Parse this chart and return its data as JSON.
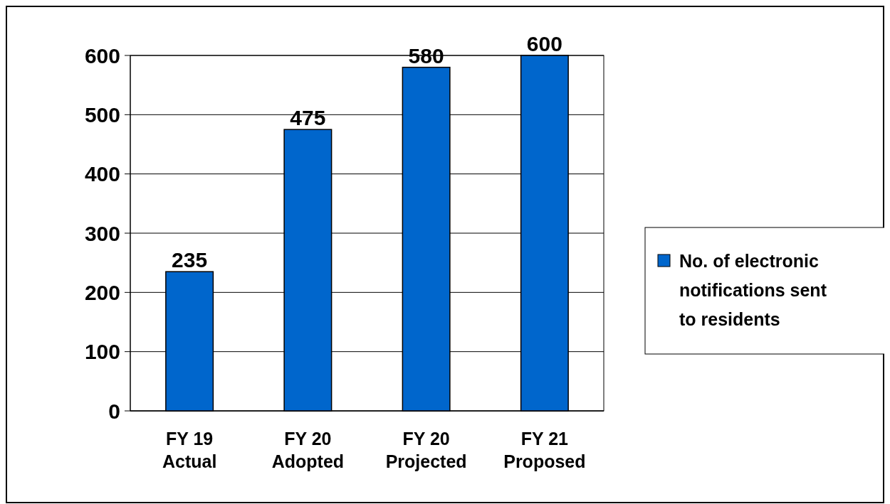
{
  "chart_data": {
    "type": "bar",
    "categories": [
      "FY 19\nActual",
      "FY 20\nAdopted",
      "FY 20\nProjected",
      "FY 21\nProposed"
    ],
    "series": [
      {
        "name": "No. of electronic notifications sent to residents",
        "color": "#0066cc",
        "values": [
          235,
          475,
          580,
          600
        ]
      }
    ],
    "ylim": [
      0,
      600
    ],
    "yticks": [
      0,
      100,
      200,
      300,
      400,
      500,
      600
    ],
    "grid": "y",
    "legend": "right",
    "data_labels": true
  }
}
